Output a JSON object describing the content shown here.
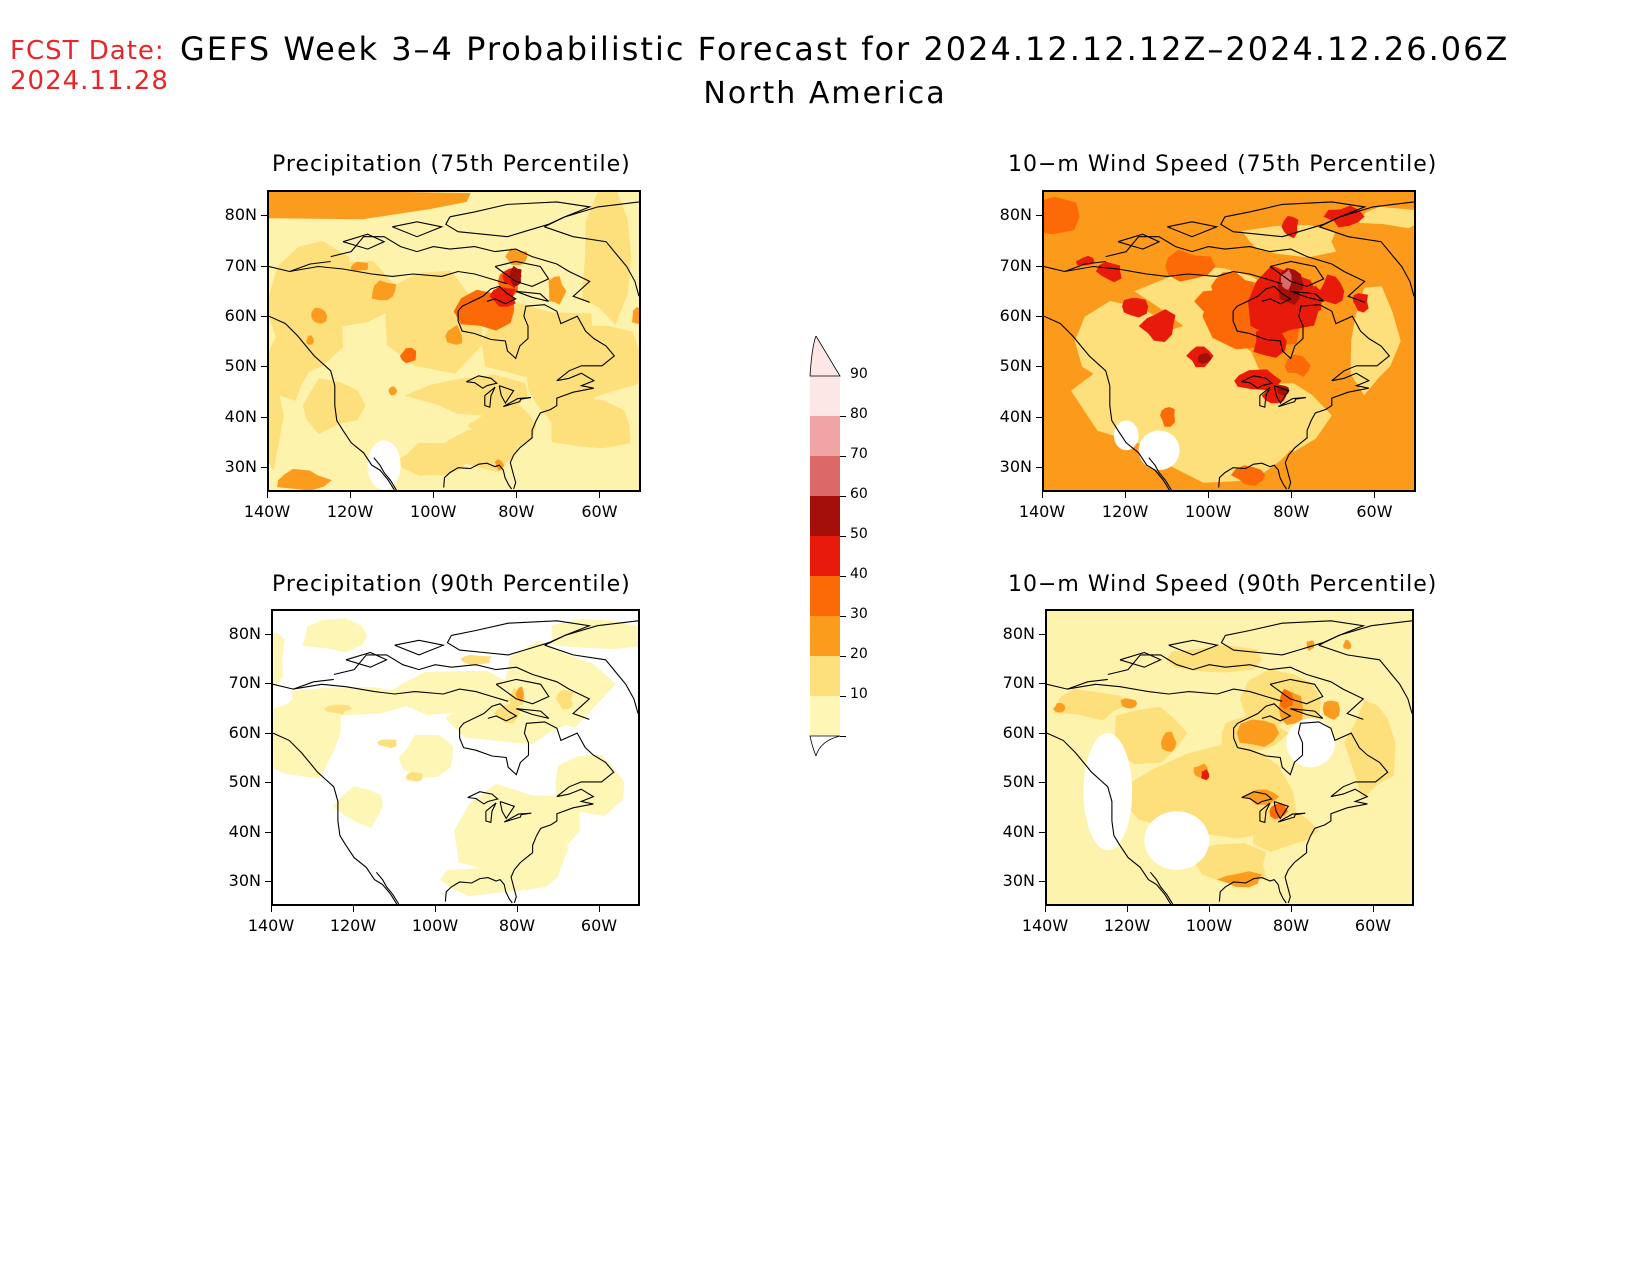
{
  "header": {
    "fcst_label": "FCST Date:",
    "fcst_date": "2024.11.28",
    "title": "GEFS Week 3–4 Probabilistic Forecast for 2024.12.12.12Z–2024.12.26.06Z",
    "subtitle": "North America"
  },
  "panels": [
    {
      "id": "p75",
      "title": "Precipitation (75th Percentile)",
      "base": "#fef3ad"
    },
    {
      "id": "w75",
      "title": "10−m Wind Speed (75th Percentile)",
      "base": "#fc9a1c"
    },
    {
      "id": "p90",
      "title": "Precipitation (90th Percentile)",
      "base": "#ffffff"
    },
    {
      "id": "w90",
      "title": "10−m Wind Speed (90th Percentile)",
      "base": "#fef3ad"
    }
  ],
  "lat_labels": [
    "80N",
    "70N",
    "60N",
    "50N",
    "40N",
    "30N"
  ],
  "lon_labels": [
    "140W",
    "120W",
    "100W",
    "80W",
    "60W"
  ],
  "colorbar": {
    "levels": [
      "10",
      "20",
      "30",
      "40",
      "50",
      "60",
      "70",
      "80",
      "90"
    ],
    "colors": {
      "10": "#fef6b4",
      "20": "#fde07c",
      "30": "#fc9c1e",
      "40": "#fc6a07",
      "50": "#e81a0a",
      "60": "#a40f09",
      "70": "#dd6868",
      "80": "#f1a4a4",
      "90": "#fde6e6"
    }
  }
}
